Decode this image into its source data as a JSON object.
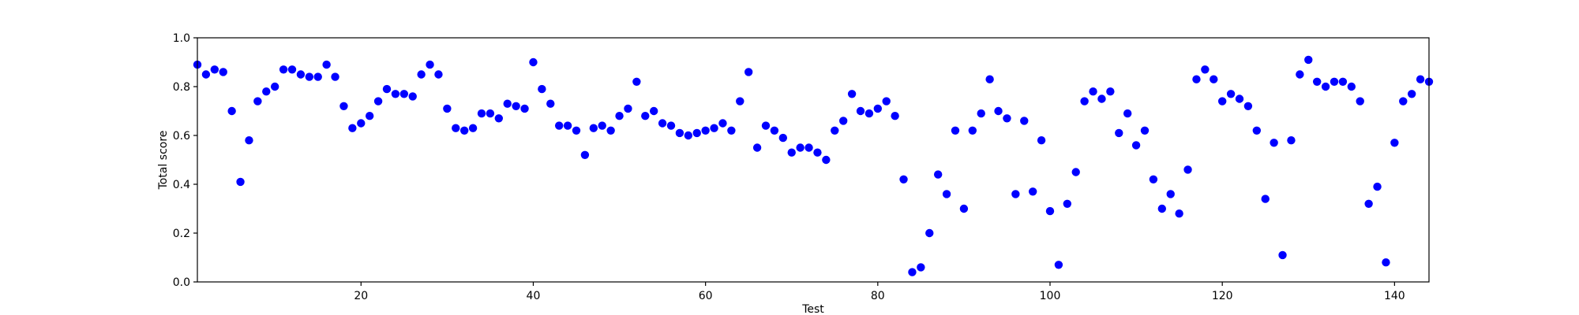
{
  "colors": {
    "marker": "#0000ff",
    "axes": "#000000",
    "background": "#ffffff"
  },
  "chart_data": {
    "type": "scatter",
    "title": "",
    "xlabel": "Test",
    "ylabel": "Total score",
    "xlim": [
      1,
      144
    ],
    "ylim": [
      0.0,
      1.0
    ],
    "xticks": [
      20,
      40,
      60,
      80,
      100,
      120,
      140
    ],
    "xtick_labels": [
      "20",
      "40",
      "60",
      "80",
      "100",
      "120",
      "140"
    ],
    "yticks": [
      0.0,
      0.2,
      0.4,
      0.6,
      0.8,
      1.0
    ],
    "ytick_labels": [
      "0.0",
      "0.2",
      "0.4",
      "0.6",
      "0.8",
      "1.0"
    ],
    "grid": false,
    "legend": "none",
    "x": [
      1,
      2,
      3,
      4,
      5,
      6,
      7,
      8,
      9,
      10,
      11,
      12,
      13,
      14,
      15,
      16,
      17,
      18,
      19,
      20,
      21,
      22,
      23,
      24,
      25,
      26,
      27,
      28,
      29,
      30,
      31,
      32,
      33,
      34,
      35,
      36,
      37,
      38,
      39,
      40,
      41,
      42,
      43,
      44,
      45,
      46,
      47,
      48,
      49,
      50,
      51,
      52,
      53,
      54,
      55,
      56,
      57,
      58,
      59,
      60,
      61,
      62,
      63,
      64,
      65,
      66,
      67,
      68,
      69,
      70,
      71,
      72,
      73,
      74,
      75,
      76,
      77,
      78,
      79,
      80,
      81,
      82,
      83,
      84,
      85,
      86,
      87,
      88,
      89,
      90,
      91,
      92,
      93,
      94,
      95,
      96,
      97,
      98,
      99,
      100,
      101,
      102,
      103,
      104,
      105,
      106,
      107,
      108,
      109,
      110,
      111,
      112,
      113,
      114,
      115,
      116,
      117,
      118,
      119,
      120,
      121,
      122,
      123,
      124,
      125,
      126,
      127,
      128,
      129,
      130,
      131,
      132,
      133,
      134,
      135,
      136,
      137,
      138,
      139,
      140,
      141,
      142,
      143,
      144
    ],
    "y": [
      0.89,
      0.85,
      0.87,
      0.86,
      0.7,
      0.41,
      0.58,
      0.74,
      0.78,
      0.8,
      0.87,
      0.87,
      0.85,
      0.84,
      0.84,
      0.89,
      0.84,
      0.72,
      0.63,
      0.65,
      0.68,
      0.74,
      0.79,
      0.77,
      0.77,
      0.76,
      0.85,
      0.89,
      0.85,
      0.71,
      0.63,
      0.62,
      0.63,
      0.69,
      0.69,
      0.67,
      0.73,
      0.72,
      0.71,
      0.9,
      0.79,
      0.73,
      0.64,
      0.64,
      0.62,
      0.52,
      0.63,
      0.64,
      0.62,
      0.68,
      0.71,
      0.82,
      0.68,
      0.7,
      0.65,
      0.64,
      0.61,
      0.6,
      0.61,
      0.62,
      0.63,
      0.65,
      0.62,
      0.74,
      0.86,
      0.55,
      0.64,
      0.62,
      0.59,
      0.53,
      0.55,
      0.55,
      0.53,
      0.5,
      0.62,
      0.66,
      0.77,
      0.7,
      0.69,
      0.71,
      0.74,
      0.68,
      0.42,
      0.04,
      0.06,
      0.2,
      0.44,
      0.36,
      0.62,
      0.3,
      0.62,
      0.69,
      0.83,
      0.7,
      0.67,
      0.36,
      0.66,
      0.37,
      0.58,
      0.29,
      0.07,
      0.32,
      0.45,
      0.74,
      0.78,
      0.75,
      0.78,
      0.61,
      0.69,
      0.56,
      0.62,
      0.42,
      0.3,
      0.36,
      0.28,
      0.46,
      0.83,
      0.87,
      0.83,
      0.74,
      0.77,
      0.75,
      0.72,
      0.62,
      0.34,
      0.57,
      0.11,
      0.58,
      0.85,
      0.91,
      0.82,
      0.8,
      0.82,
      0.82,
      0.8,
      0.74,
      0.32,
      0.39,
      0.08,
      0.57,
      0.74,
      0.77,
      0.83,
      0.82
    ]
  }
}
